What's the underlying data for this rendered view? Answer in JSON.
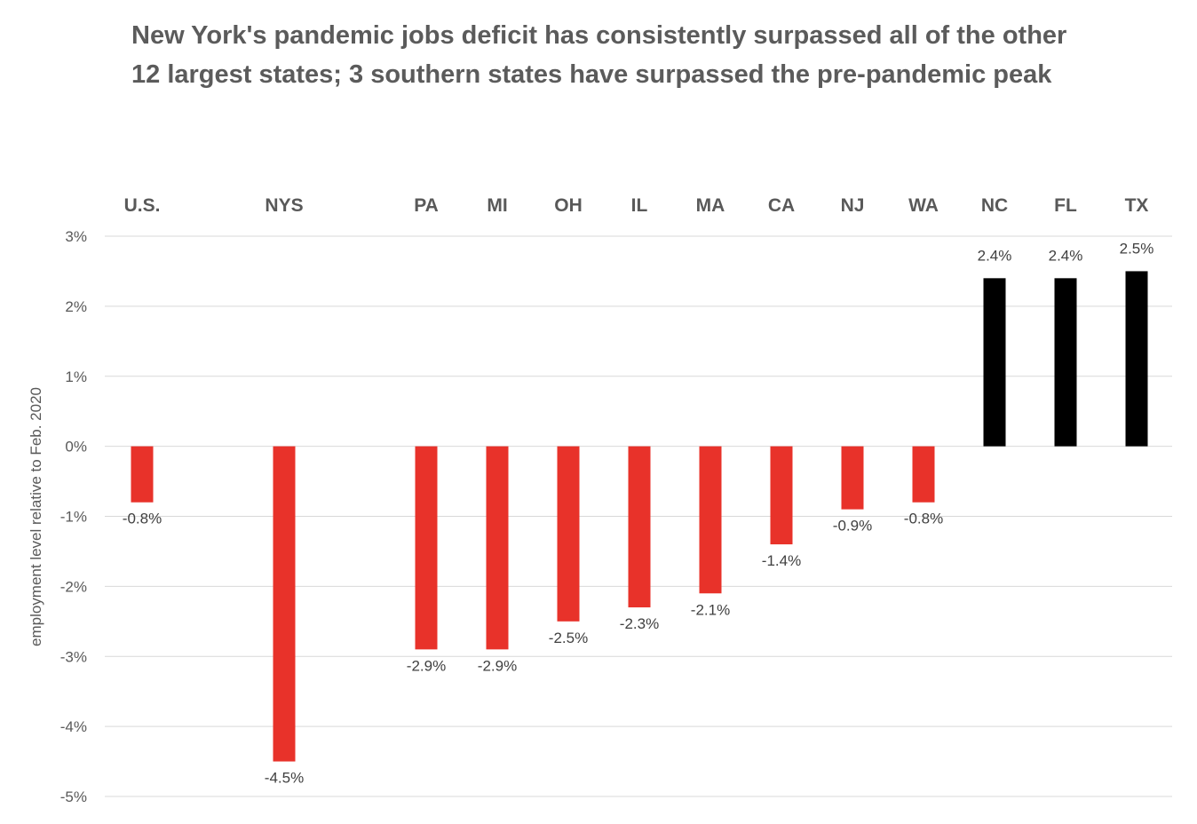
{
  "chart_data": {
    "type": "bar",
    "title": "New York's pandemic jobs deficit has consistently surpassed all of the other 12 largest states; 3 southern states have surpassed the pre-pandemic peak",
    "ylabel": "employment level relative to Feb. 2020",
    "xlabel": "",
    "ylim": [
      -5,
      3
    ],
    "yticks": [
      3,
      2,
      1,
      0,
      -1,
      -2,
      -3,
      -4,
      -5
    ],
    "ytick_labels": [
      "3%",
      "2%",
      "1%",
      "0%",
      "-1%",
      "-2%",
      "-3%",
      "-4%",
      "-5%"
    ],
    "grid": true,
    "categories": [
      "U.S.",
      "NYS",
      "PA",
      "MI",
      "OH",
      "IL",
      "MA",
      "CA",
      "NJ",
      "WA",
      "NC",
      "FL",
      "TX"
    ],
    "values": [
      -0.8,
      -4.5,
      -2.9,
      -2.9,
      -2.5,
      -2.3,
      -2.1,
      -1.4,
      -0.9,
      -0.8,
      2.4,
      2.4,
      2.5
    ],
    "value_labels": [
      "-0.8%",
      "-4.5%",
      "-2.9%",
      "-2.9%",
      "-2.5%",
      "-2.3%",
      "-2.1%",
      "-1.4%",
      "-0.9%",
      "-0.8%",
      "2.4%",
      "2.4%",
      "2.5%"
    ],
    "colors": {
      "negative": "#e8322a",
      "positive": "#000000"
    },
    "category_labels_position": "top"
  }
}
